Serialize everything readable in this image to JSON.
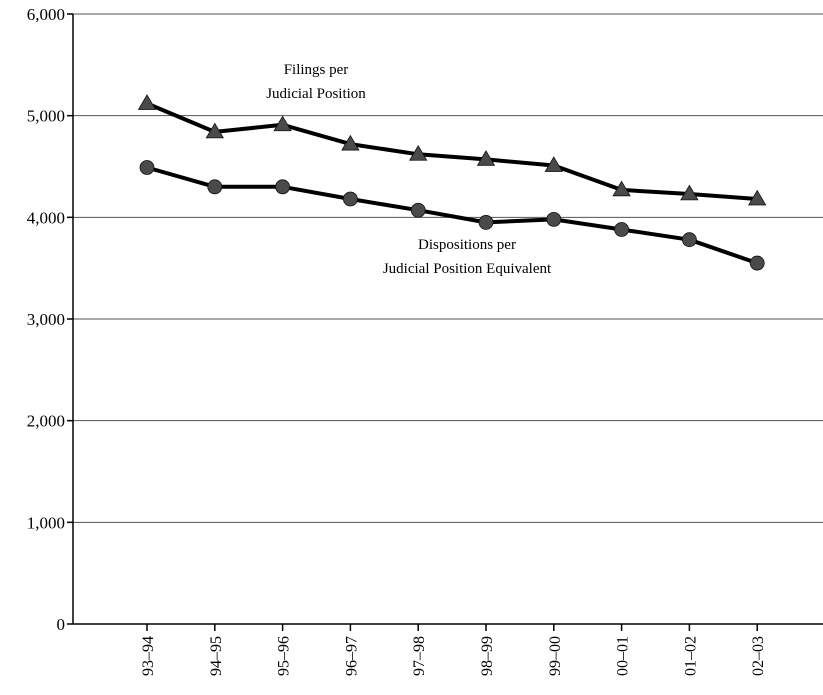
{
  "chart_data": {
    "type": "line",
    "title": "",
    "xlabel": "",
    "ylabel": "",
    "categories": [
      "93–94",
      "94–95",
      "95–96",
      "96–97",
      "97–98",
      "98–99",
      "99–00",
      "00–01",
      "01–02",
      "02–03"
    ],
    "ylim": [
      0,
      6000
    ],
    "yticks": [
      "0",
      "1,000",
      "2,000",
      "3,000",
      "4,000",
      "5,000",
      "6,000"
    ],
    "grid": true,
    "series": [
      {
        "name": "Filings per Judicial Position",
        "label_lines": [
          "Filings per",
          "Judicial Position"
        ],
        "marker": "triangle",
        "values": [
          5120,
          4840,
          4910,
          4720,
          4620,
          4570,
          4510,
          4270,
          4230,
          4180
        ]
      },
      {
        "name": "Dispositions per Judicial Position Equivalent",
        "label_lines": [
          "Dispositions per",
          "Judicial Position Equivalent"
        ],
        "marker": "circle",
        "values": [
          4490,
          4300,
          4300,
          4180,
          4070,
          3950,
          3980,
          3880,
          3780,
          3550
        ]
      }
    ],
    "colors": {
      "line": "#000000",
      "marker_fill": "#4a4a4a",
      "grid": "#555555"
    }
  }
}
